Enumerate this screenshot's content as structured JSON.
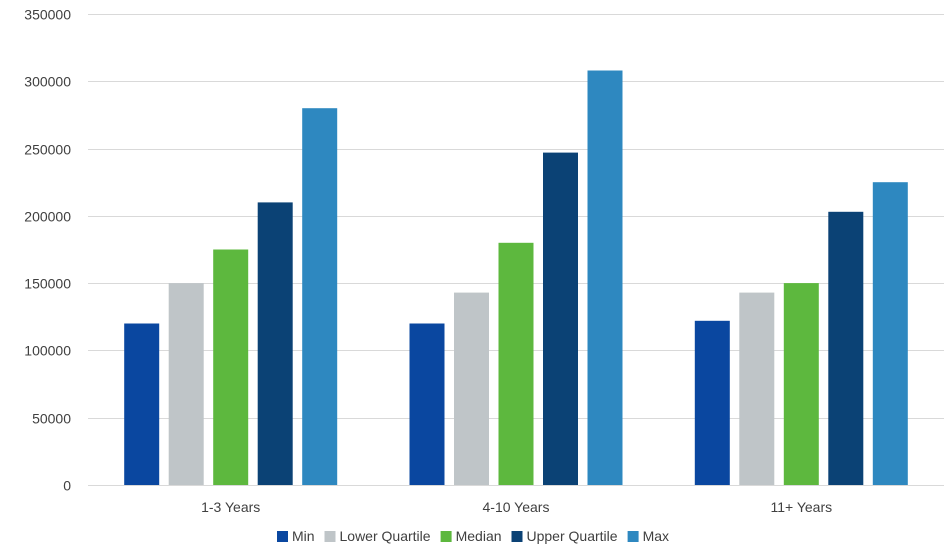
{
  "chart_data": {
    "type": "bar",
    "title": "",
    "xlabel": "",
    "ylabel": "",
    "ylim": [
      0,
      350000
    ],
    "yticks": [
      0,
      50000,
      100000,
      150000,
      200000,
      250000,
      300000,
      350000
    ],
    "grid": true,
    "legend_position": "bottom",
    "categories": [
      "1-3 Years",
      "4-10 Years",
      "11+ Years"
    ],
    "series": [
      {
        "name": "Min",
        "color": "#0a47a0",
        "values": [
          120000,
          120000,
          122000
        ]
      },
      {
        "name": "Lower Quartile",
        "color": "#bfc5c8",
        "values": [
          150000,
          143000,
          143000
        ]
      },
      {
        "name": "Median",
        "color": "#5db83e",
        "values": [
          175000,
          180000,
          150000
        ]
      },
      {
        "name": "Upper Quartile",
        "color": "#0b4275",
        "values": [
          210000,
          247000,
          203000
        ]
      },
      {
        "name": "Max",
        "color": "#2e88c0",
        "values": [
          280000,
          308000,
          225000
        ]
      }
    ]
  }
}
